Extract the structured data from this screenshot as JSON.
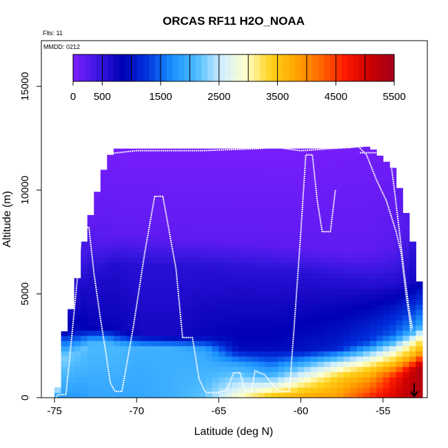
{
  "chart_data": {
    "type": "heatmap",
    "title": "ORCAS RF11 H2O_NOAA",
    "header_note": "Flts: 11",
    "date_note": "MMDD: 0212",
    "xlabel": "Latitude (deg N)",
    "ylabel": "Altitude (m)",
    "xlim": [
      -75.8,
      -52.3
    ],
    "ylim": [
      0,
      17200
    ],
    "x_ticks": [
      -75,
      -70,
      -65,
      -60,
      -55
    ],
    "x_tick_labels": [
      "-75",
      "-70",
      "-65",
      "-60",
      "-55"
    ],
    "y_ticks": [
      0,
      5000,
      10000,
      15000
    ],
    "y_tick_labels": [
      "0",
      "5000",
      "10000",
      "15000"
    ],
    "colorbar": {
      "min": 0,
      "max": 5500,
      "step": 500,
      "tick_values": [
        0,
        500,
        1500,
        2500,
        3500,
        4500,
        5500
      ],
      "tick_labels": [
        "0",
        "500",
        "1500",
        "2500",
        "3500",
        "4500",
        "5500"
      ],
      "colors": [
        "#7f1fff",
        "#3a17e0",
        "#0000b5",
        "#0033dd",
        "#1a90ff",
        "#4dbbff",
        "#cfeeff",
        "#ffffcc",
        "#ffd21a",
        "#ffa600",
        "#ff6a00",
        "#ff1a00",
        "#cc0000",
        "#a0001a"
      ]
    },
    "field_columns": [
      {
        "lat": -75.0,
        "top": 500,
        "prof": [
          [
            0,
            1700
          ],
          [
            400,
            2400
          ],
          [
            2700,
            2500
          ]
        ]
      },
      {
        "lat": -74.8,
        "top": 1800,
        "prof": [
          [
            0,
            1700
          ],
          [
            1200,
            2300
          ],
          [
            2800,
            2000
          ]
        ]
      },
      {
        "lat": -74.6,
        "top": 3200,
        "prof": [
          [
            0,
            1800
          ],
          [
            2000,
            2300
          ],
          [
            3000,
            1200
          ],
          [
            3200,
            700
          ]
        ]
      },
      {
        "lat": -74.0,
        "top": 4800,
        "prof": [
          [
            0,
            1800
          ],
          [
            2200,
            2200
          ],
          [
            3200,
            1000
          ],
          [
            4500,
            600
          ]
        ]
      },
      {
        "lat": -73.5,
        "top": 7200,
        "prof": [
          [
            0,
            1800
          ],
          [
            2400,
            2200
          ],
          [
            3300,
            900
          ],
          [
            5000,
            700
          ],
          [
            7000,
            350
          ]
        ]
      },
      {
        "lat": -73.0,
        "top": 8800,
        "prof": [
          [
            0,
            1900
          ],
          [
            2600,
            2100
          ],
          [
            3400,
            800
          ],
          [
            6000,
            600
          ],
          [
            7500,
            300
          ],
          [
            8800,
            150
          ]
        ]
      },
      {
        "lat": -72.5,
        "top": 10200,
        "prof": [
          [
            0,
            1900
          ],
          [
            2600,
            2100
          ],
          [
            3400,
            800
          ],
          [
            6000,
            600
          ],
          [
            7500,
            250
          ],
          [
            10000,
            100
          ]
        ]
      },
      {
        "lat": -72.0,
        "top": 11500,
        "prof": [
          [
            0,
            1900
          ],
          [
            2600,
            2100
          ],
          [
            3400,
            800
          ],
          [
            6300,
            600
          ],
          [
            7500,
            250
          ],
          [
            11500,
            80
          ]
        ]
      },
      {
        "lat": -71.5,
        "top": 12000,
        "prof": [
          [
            0,
            1900
          ],
          [
            2500,
            2100
          ],
          [
            3300,
            800
          ],
          [
            6400,
            600
          ],
          [
            7800,
            200
          ],
          [
            12000,
            60
          ]
        ]
      },
      {
        "lat": -70.0,
        "top": 12000,
        "prof": [
          [
            0,
            1900
          ],
          [
            2400,
            2000
          ],
          [
            3100,
            700
          ],
          [
            6400,
            550
          ],
          [
            7800,
            200
          ],
          [
            12000,
            50
          ]
        ]
      },
      {
        "lat": -68.0,
        "top": 12000,
        "prof": [
          [
            0,
            2000
          ],
          [
            2400,
            2000
          ],
          [
            3000,
            700
          ],
          [
            6400,
            550
          ],
          [
            7700,
            200
          ],
          [
            12000,
            50
          ]
        ]
      },
      {
        "lat": -66.0,
        "top": 12000,
        "prof": [
          [
            0,
            2200
          ],
          [
            2300,
            1900
          ],
          [
            3000,
            800
          ],
          [
            6300,
            550
          ],
          [
            7600,
            200
          ],
          [
            12000,
            50
          ]
        ]
      },
      {
        "lat": -64.0,
        "top": 12000,
        "prof": [
          [
            0,
            3000
          ],
          [
            500,
            2600
          ],
          [
            1600,
            1900
          ],
          [
            2400,
            900
          ],
          [
            6200,
            550
          ],
          [
            7500,
            200
          ],
          [
            12000,
            50
          ]
        ]
      },
      {
        "lat": -62.0,
        "top": 12000,
        "prof": [
          [
            0,
            3600
          ],
          [
            500,
            2800
          ],
          [
            1100,
            2000
          ],
          [
            2400,
            900
          ],
          [
            6100,
            550
          ],
          [
            7400,
            200
          ],
          [
            12000,
            50
          ]
        ]
      },
      {
        "lat": -60.0,
        "top": 12000,
        "prof": [
          [
            0,
            3800
          ],
          [
            700,
            3100
          ],
          [
            1500,
            2200
          ],
          [
            2300,
            1000
          ],
          [
            6000,
            550
          ],
          [
            7200,
            200
          ],
          [
            12000,
            50
          ]
        ]
      },
      {
        "lat": -58.0,
        "top": 12000,
        "prof": [
          [
            0,
            3900
          ],
          [
            1000,
            3400
          ],
          [
            1700,
            2500
          ],
          [
            2400,
            1100
          ],
          [
            5800,
            550
          ],
          [
            7000,
            200
          ],
          [
            12000,
            60
          ]
        ]
      },
      {
        "lat": -56.0,
        "top": 12100,
        "prof": [
          [
            0,
            4600
          ],
          [
            800,
            4000
          ],
          [
            1400,
            3400
          ],
          [
            2000,
            2600
          ],
          [
            2700,
            1300
          ],
          [
            5600,
            550
          ],
          [
            7000,
            200
          ],
          [
            12100,
            80
          ]
        ]
      },
      {
        "lat": -54.5,
        "top": 11000,
        "prof": [
          [
            0,
            5000
          ],
          [
            1000,
            4700
          ],
          [
            1700,
            3500
          ],
          [
            2300,
            2800
          ],
          [
            3000,
            1500
          ],
          [
            5500,
            600
          ],
          [
            7200,
            250
          ],
          [
            11000,
            120
          ]
        ]
      },
      {
        "lat": -53.5,
        "top": 8000,
        "prof": [
          [
            0,
            5300
          ],
          [
            1300,
            5100
          ],
          [
            2000,
            3600
          ],
          [
            2600,
            3000
          ],
          [
            3300,
            1700
          ],
          [
            5500,
            700
          ],
          [
            8000,
            300
          ]
        ]
      },
      {
        "lat": -53.0,
        "top": 5600,
        "prof": [
          [
            0,
            5300
          ],
          [
            1500,
            5300
          ],
          [
            2200,
            3700
          ],
          [
            2800,
            3100
          ],
          [
            3500,
            1800
          ],
          [
            5600,
            800
          ]
        ]
      }
    ],
    "flight_track": [
      [
        -74.9,
        0
      ],
      [
        -74.8,
        150
      ],
      [
        -74.3,
        150
      ],
      [
        -74.0,
        2500
      ],
      [
        -73.6,
        5800
      ],
      [
        -73.3,
        8200
      ],
      [
        -72.9,
        8200
      ],
      [
        -72.6,
        6000
      ],
      [
        -72.2,
        3800
      ],
      [
        -71.9,
        2300
      ],
      [
        -71.6,
        700
      ],
      [
        -71.3,
        300
      ],
      [
        -70.9,
        300
      ],
      [
        -70.2,
        3400
      ],
      [
        -69.5,
        7000
      ],
      [
        -68.9,
        9700
      ],
      [
        -68.4,
        9700
      ],
      [
        -67.6,
        6200
      ],
      [
        -67.2,
        2900
      ],
      [
        -66.6,
        2900
      ],
      [
        -66.2,
        900
      ],
      [
        -65.8,
        250
      ],
      [
        -65.1,
        250
      ],
      [
        -64.5,
        350
      ],
      [
        -64.1,
        1200
      ],
      [
        -63.7,
        1200
      ],
      [
        -63.4,
        300
      ],
      [
        -63.0,
        300
      ],
      [
        -62.8,
        1300
      ],
      [
        -62.2,
        1100
      ],
      [
        -61.8,
        700
      ],
      [
        -61.3,
        300
      ],
      [
        -60.7,
        300
      ],
      [
        -60.4,
        3500
      ],
      [
        -60.0,
        8000
      ],
      [
        -59.7,
        11700
      ],
      [
        -59.3,
        11700
      ],
      [
        -59.0,
        9500
      ],
      [
        -58.7,
        8000
      ],
      [
        -58.2,
        8000
      ],
      [
        -57.9,
        10000
      ]
    ],
    "flight_track_2": [
      [
        -72.3,
        11700
      ],
      [
        -70.0,
        11900
      ],
      [
        -66.0,
        11900
      ],
      [
        -62.5,
        12000
      ],
      [
        -61.5,
        12100
      ],
      [
        -61.0,
        12000
      ],
      [
        -60.0,
        11900
      ],
      [
        -59.0,
        11950
      ],
      [
        -58.2,
        12000
      ],
      [
        -57.0,
        12050
      ],
      [
        -56.5,
        12100
      ],
      [
        -56.0,
        11700
      ],
      [
        -55.4,
        10500
      ],
      [
        -54.8,
        9500
      ],
      [
        -54.2,
        8000
      ],
      [
        -53.9,
        7000
      ],
      [
        -53.6,
        5000
      ],
      [
        -53.4,
        3900
      ],
      [
        -53.3,
        3200
      ]
    ],
    "flight_track_3": [
      [
        -56.4,
        11800
      ],
      [
        -55.0,
        11800
      ],
      [
        -54.6,
        11800
      ],
      [
        -54.3,
        10000
      ],
      [
        -54.0,
        8000
      ],
      [
        -53.7,
        6000
      ],
      [
        -53.4,
        4200
      ],
      [
        -53.2,
        3300
      ]
    ],
    "marker_lat": -53.1
  }
}
